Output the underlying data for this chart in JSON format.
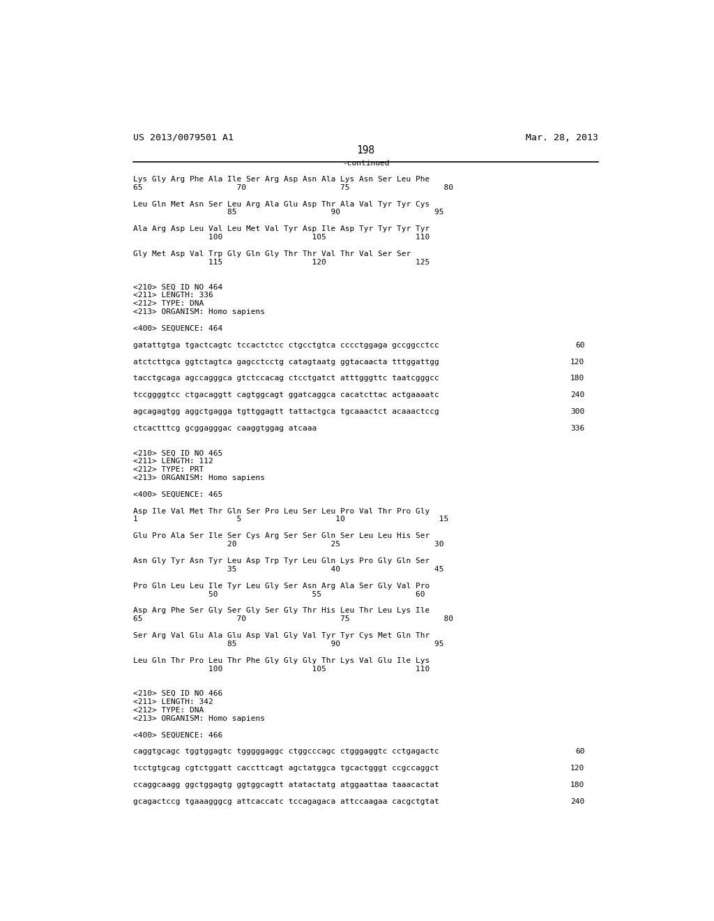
{
  "bg_color": "#ffffff",
  "header_left": "US 2013/0079501 A1",
  "header_right": "Mar. 28, 2013",
  "page_number": "198",
  "continued_label": "-continued",
  "font_size_header": 9.5,
  "font_size_body": 8.0,
  "mono_font": "DejaVu Sans Mono",
  "content": [
    {
      "type": "seq_line",
      "text": "Lys Gly Arg Phe Ala Ile Ser Arg Asp Asn Ala Lys Asn Ser Leu Phe"
    },
    {
      "type": "num_line",
      "text": "65                    70                    75                    80"
    },
    {
      "type": "blank"
    },
    {
      "type": "seq_line",
      "text": "Leu Gln Met Asn Ser Leu Arg Ala Glu Asp Thr Ala Val Tyr Tyr Cys"
    },
    {
      "type": "num_line",
      "text": "                    85                    90                    95"
    },
    {
      "type": "blank"
    },
    {
      "type": "seq_line",
      "text": "Ala Arg Asp Leu Val Leu Met Val Tyr Asp Ile Asp Tyr Tyr Tyr Tyr"
    },
    {
      "type": "num_line",
      "text": "                100                   105                   110"
    },
    {
      "type": "blank"
    },
    {
      "type": "seq_line",
      "text": "Gly Met Asp Val Trp Gly Gln Gly Thr Thr Val Thr Val Ser Ser"
    },
    {
      "type": "num_line",
      "text": "                115                   120                   125"
    },
    {
      "type": "blank"
    },
    {
      "type": "blank"
    },
    {
      "type": "meta",
      "text": "<210> SEQ ID NO 464"
    },
    {
      "type": "meta",
      "text": "<211> LENGTH: 336"
    },
    {
      "type": "meta",
      "text": "<212> TYPE: DNA"
    },
    {
      "type": "meta",
      "text": "<213> ORGANISM: Homo sapiens"
    },
    {
      "type": "blank"
    },
    {
      "type": "meta",
      "text": "<400> SEQUENCE: 464"
    },
    {
      "type": "blank"
    },
    {
      "type": "dna",
      "text": "gatattgtga tgactcagtc tccactctcc ctgcctgtca cccctggaga gccggcctcc",
      "num": "60"
    },
    {
      "type": "blank"
    },
    {
      "type": "dna",
      "text": "atctcttgca ggtctagtca gagcctcctg catagtaatg ggtacaacta tttggattgg",
      "num": "120"
    },
    {
      "type": "blank"
    },
    {
      "type": "dna",
      "text": "tacctgcaga agccagggca gtctccacag ctcctgatct atttgggttc taatcgggcc",
      "num": "180"
    },
    {
      "type": "blank"
    },
    {
      "type": "dna",
      "text": "tccggggtcc ctgacaggtt cagtggcagt ggatcaggca cacatcttac actgaaaatc",
      "num": "240"
    },
    {
      "type": "blank"
    },
    {
      "type": "dna",
      "text": "agcagagtgg aggctgagga tgttggagtt tattactgca tgcaaactct acaaactccg",
      "num": "300"
    },
    {
      "type": "blank"
    },
    {
      "type": "dna",
      "text": "ctcactttcg gcggagggac caaggtggag atcaaa",
      "num": "336"
    },
    {
      "type": "blank"
    },
    {
      "type": "blank"
    },
    {
      "type": "meta",
      "text": "<210> SEQ ID NO 465"
    },
    {
      "type": "meta",
      "text": "<211> LENGTH: 112"
    },
    {
      "type": "meta",
      "text": "<212> TYPE: PRT"
    },
    {
      "type": "meta",
      "text": "<213> ORGANISM: Homo sapiens"
    },
    {
      "type": "blank"
    },
    {
      "type": "meta",
      "text": "<400> SEQUENCE: 465"
    },
    {
      "type": "blank"
    },
    {
      "type": "seq_line",
      "text": "Asp Ile Val Met Thr Gln Ser Pro Leu Ser Leu Pro Val Thr Pro Gly"
    },
    {
      "type": "num_line",
      "text": "1                     5                    10                    15"
    },
    {
      "type": "blank"
    },
    {
      "type": "seq_line",
      "text": "Glu Pro Ala Ser Ile Ser Cys Arg Ser Ser Gln Ser Leu Leu His Ser"
    },
    {
      "type": "num_line",
      "text": "                    20                    25                    30"
    },
    {
      "type": "blank"
    },
    {
      "type": "seq_line",
      "text": "Asn Gly Tyr Asn Tyr Leu Asp Trp Tyr Leu Gln Lys Pro Gly Gln Ser"
    },
    {
      "type": "num_line",
      "text": "                    35                    40                    45"
    },
    {
      "type": "blank"
    },
    {
      "type": "seq_line",
      "text": "Pro Gln Leu Leu Ile Tyr Leu Gly Ser Asn Arg Ala Ser Gly Val Pro"
    },
    {
      "type": "num_line",
      "text": "                50                    55                    60"
    },
    {
      "type": "blank"
    },
    {
      "type": "seq_line",
      "text": "Asp Arg Phe Ser Gly Ser Gly Ser Gly Thr His Leu Thr Leu Lys Ile"
    },
    {
      "type": "num_line",
      "text": "65                    70                    75                    80"
    },
    {
      "type": "blank"
    },
    {
      "type": "seq_line",
      "text": "Ser Arg Val Glu Ala Glu Asp Val Gly Val Tyr Tyr Cys Met Gln Thr"
    },
    {
      "type": "num_line",
      "text": "                    85                    90                    95"
    },
    {
      "type": "blank"
    },
    {
      "type": "seq_line",
      "text": "Leu Gln Thr Pro Leu Thr Phe Gly Gly Gly Thr Lys Val Glu Ile Lys"
    },
    {
      "type": "num_line",
      "text": "                100                   105                   110"
    },
    {
      "type": "blank"
    },
    {
      "type": "blank"
    },
    {
      "type": "meta",
      "text": "<210> SEQ ID NO 466"
    },
    {
      "type": "meta",
      "text": "<211> LENGTH: 342"
    },
    {
      "type": "meta",
      "text": "<212> TYPE: DNA"
    },
    {
      "type": "meta",
      "text": "<213> ORGANISM: Homo sapiens"
    },
    {
      "type": "blank"
    },
    {
      "type": "meta",
      "text": "<400> SEQUENCE: 466"
    },
    {
      "type": "blank"
    },
    {
      "type": "dna",
      "text": "caggtgcagc tggtggagtc tgggggaggc ctggcccagc ctgggaggtc cctgagactc",
      "num": "60"
    },
    {
      "type": "blank"
    },
    {
      "type": "dna",
      "text": "tcctgtgcag cgtctggatt caccttcagt agctatggca tgcactgggt ccgccaggct",
      "num": "120"
    },
    {
      "type": "blank"
    },
    {
      "type": "dna",
      "text": "ccaggcaagg ggctggagtg ggtggcagtt atatactatg atggaattaa taaacactat",
      "num": "180"
    },
    {
      "type": "blank"
    },
    {
      "type": "dna",
      "text": "gcagactccg tgaaagggcg attcaccatc tccagagaca attccaagaa cacgctgtat",
      "num": "240"
    }
  ]
}
